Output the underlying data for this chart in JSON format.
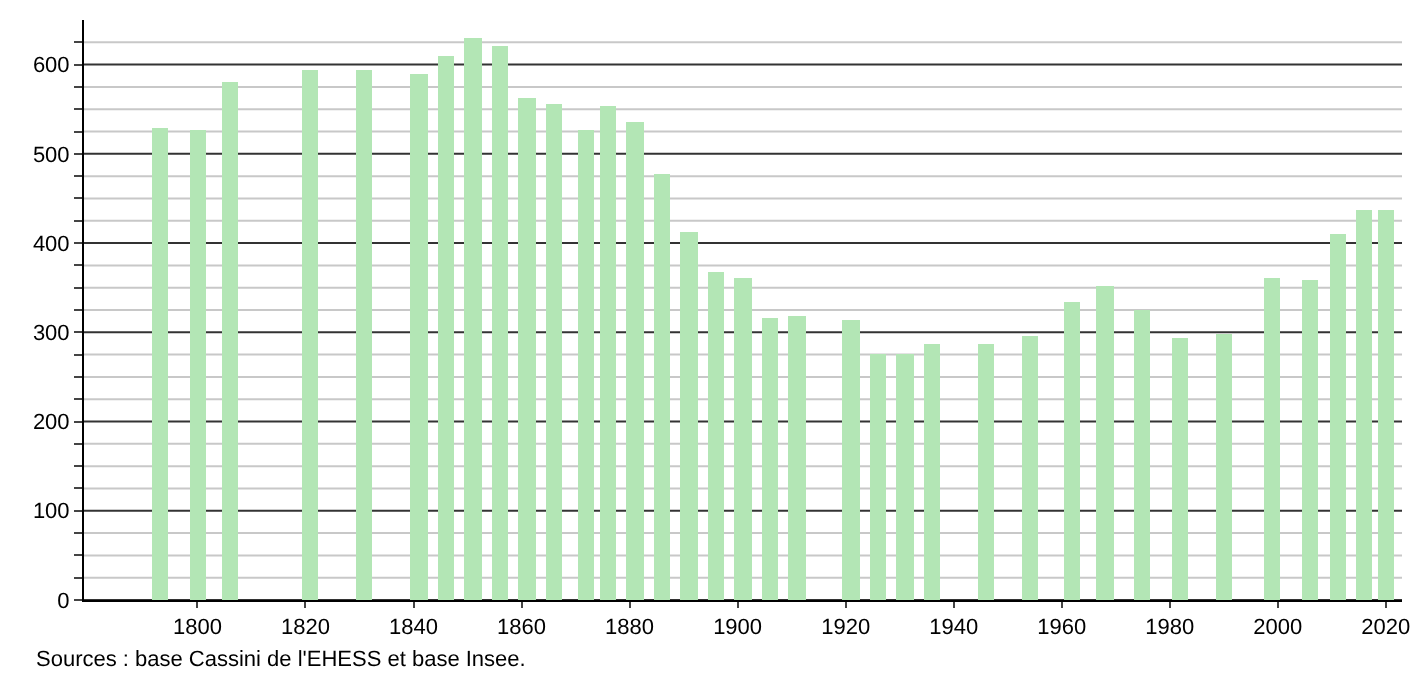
{
  "chart_data": {
    "type": "bar",
    "x": [
      1793,
      1800,
      1806,
      1821,
      1831,
      1841,
      1846,
      1851,
      1856,
      1861,
      1866,
      1872,
      1876,
      1881,
      1886,
      1891,
      1896,
      1901,
      1906,
      1911,
      1921,
      1926,
      1931,
      1936,
      1946,
      1954,
      1962,
      1968,
      1975,
      1982,
      1990,
      1999,
      2006,
      2011,
      2016,
      2020
    ],
    "values": [
      530,
      526,
      581,
      593,
      593,
      590,
      609,
      629,
      620,
      562,
      556,
      526,
      554,
      536,
      477,
      412,
      367,
      361,
      316,
      318,
      314,
      276,
      276,
      286,
      286,
      295,
      333,
      353,
      326,
      293,
      299,
      361,
      359,
      410,
      438,
      438
    ],
    "color": "#b3e6b5",
    "xlim": [
      1779,
      2023
    ],
    "xticks": [
      1800,
      1820,
      1840,
      1860,
      1880,
      1900,
      1920,
      1940,
      1960,
      1980,
      2000,
      2020
    ],
    "ylim": [
      0,
      650
    ],
    "yticks": [
      0,
      {
        "value": 25,
        "label": null
      },
      {
        "value": 50,
        "label": null
      },
      {
        "value": 75,
        "label": null
      },
      100,
      {
        "value": 125,
        "label": null
      },
      {
        "value": 150,
        "label": null
      },
      {
        "value": 175,
        "label": null
      },
      200,
      {
        "value": 225,
        "label": null
      },
      {
        "value": 250,
        "label": null
      },
      {
        "value": 275,
        "label": null
      },
      300,
      {
        "value": 325,
        "label": null
      },
      {
        "value": 350,
        "label": null
      },
      {
        "value": 375,
        "label": null
      },
      400,
      {
        "value": 425,
        "label": null
      },
      {
        "value": 450,
        "label": null
      },
      {
        "value": 475,
        "label": null
      },
      500,
      {
        "value": 525,
        "label": null
      },
      {
        "value": 550,
        "label": null
      },
      {
        "value": 575,
        "label": null
      },
      600,
      {
        "value": 625,
        "label": null
      }
    ],
    "grid": "y",
    "annotations": [
      "Sources : base Cassini de l'EHESS et base Insee."
    ]
  }
}
